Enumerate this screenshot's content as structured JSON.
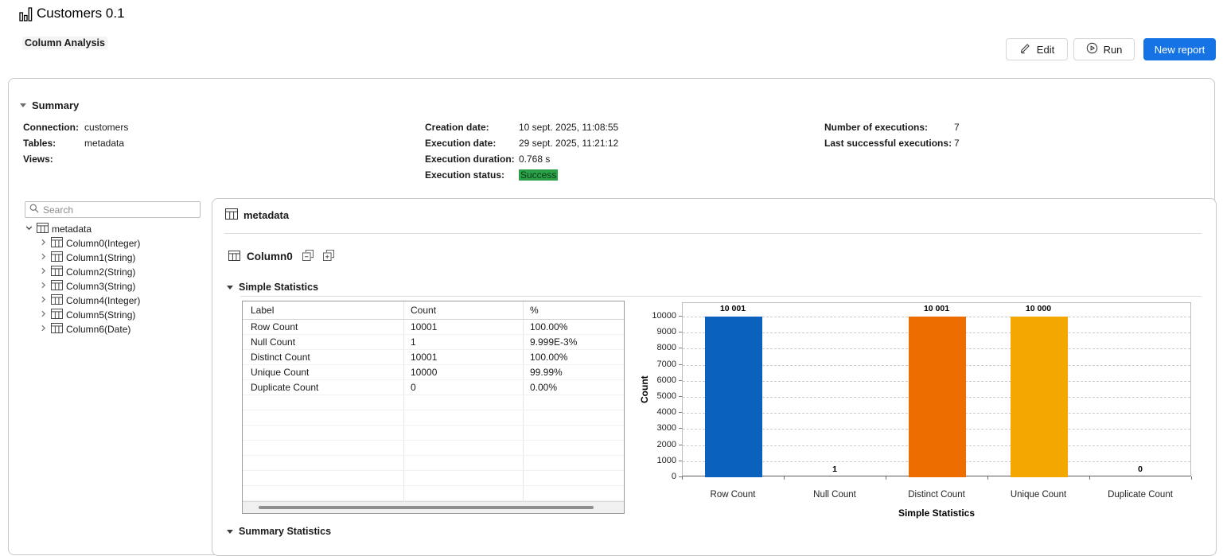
{
  "app": {
    "title": "Customers 0.1",
    "subtitle": "Column Analysis"
  },
  "toolbar": {
    "edit_label": "Edit",
    "run_label": "Run",
    "new_report_label": "New report",
    "accent_color": "#1673e6"
  },
  "summary": {
    "header": "Summary",
    "left": [
      {
        "label": "Connection:",
        "value": "customers"
      },
      {
        "label": "Tables:",
        "value": "metadata"
      },
      {
        "label": "Views:",
        "value": ""
      }
    ],
    "middle": [
      {
        "label": "Creation date:",
        "value": "10 sept. 2025, 11:08:55"
      },
      {
        "label": "Execution date:",
        "value": "29 sept. 2025, 11:21:12"
      },
      {
        "label": "Execution duration:",
        "value": "0.768 s"
      },
      {
        "label": "Execution status:",
        "value": "Success"
      }
    ],
    "right": [
      {
        "label": "Number of executions:",
        "value": "7"
      },
      {
        "label": "Last successful executions:",
        "value": "7"
      }
    ]
  },
  "sidebar": {
    "search_placeholder": "Search",
    "tree": {
      "root": "metadata",
      "children": [
        "Column0(Integer)",
        "Column1(String)",
        "Column2(String)",
        "Column3(String)",
        "Column4(Integer)",
        "Column5(String)",
        "Column6(Date)"
      ]
    }
  },
  "main": {
    "panel_title": "metadata",
    "column_title": "Column0",
    "section_title": "Simple Statistics",
    "bottom_section_title": "Summary Statistics",
    "table": {
      "headers": [
        "Label",
        "Count",
        "%"
      ],
      "rows": [
        [
          "Row Count",
          "10001",
          "100.00%"
        ],
        [
          "Null Count",
          "1",
          "9.999E-3%"
        ],
        [
          "Distinct Count",
          "10001",
          "100.00%"
        ],
        [
          "Unique Count",
          "10000",
          "99.99%"
        ],
        [
          "Duplicate Count",
          "0",
          "0.00%"
        ]
      ]
    }
  },
  "chart_data": {
    "type": "bar",
    "categories": [
      "Row Count",
      "Null Count",
      "Distinct Count",
      "Unique Count",
      "Duplicate Count"
    ],
    "values": [
      10001,
      1,
      10001,
      10000,
      0
    ],
    "value_labels": [
      "10 001",
      "1",
      "10 001",
      "10 000",
      "0"
    ],
    "bar_colors": [
      "#0a62be",
      "#0a62be",
      "#ee6d00",
      "#f4a700",
      "#8f8f8f"
    ],
    "title": "",
    "xlabel": "Simple Statistics",
    "ylabel": "Count",
    "ylim": [
      0,
      10000
    ],
    "yticks": [
      0,
      1000,
      2000,
      3000,
      4000,
      5000,
      6000,
      7000,
      8000,
      9000,
      10000
    ],
    "grid": "horizontal-dashed",
    "legend": "none"
  },
  "colors": {
    "success_badge_bg": "#2aa148",
    "bar_blue": "#0a62be",
    "bar_orange": "#ee6d00",
    "bar_amber": "#f4a700"
  }
}
